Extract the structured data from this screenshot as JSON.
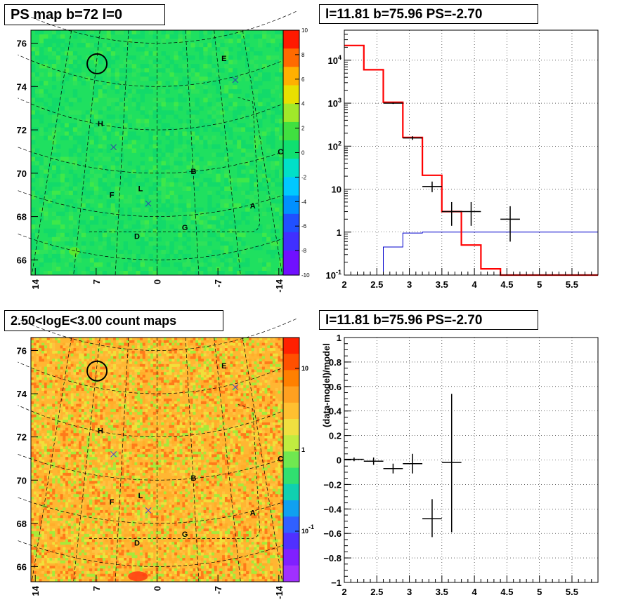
{
  "titles": {
    "top_left": "PS map b=72 l=0",
    "top_right": "l=11.81 b=75.96 PS=-2.70",
    "bottom_left": "2.50<logE<3.00 count maps",
    "bottom_right": "l=11.81 b=75.96 PS=-2.70"
  },
  "chart_data": [
    {
      "id": "ps-map",
      "type": "heatmap",
      "title": "PS map b=72 l=0",
      "x_tick_labels": [
        "14",
        "7",
        "0",
        "-7",
        "-14"
      ],
      "x_ticks": [
        14,
        7,
        0,
        -7,
        -14
      ],
      "xlim": [
        14.5,
        -14.5
      ],
      "y_tick_labels": [
        "66",
        "68",
        "70",
        "72",
        "74",
        "76"
      ],
      "y_ticks": [
        66,
        68,
        70,
        72,
        74,
        76
      ],
      "ylim": [
        65.3,
        76.6
      ],
      "colorbar_tick_labels": [
        "10",
        "8",
        "6",
        "4",
        "2",
        "0",
        "-2",
        "-4",
        "-6",
        "-8",
        "-10"
      ],
      "colorbar_range": [
        -10,
        10
      ],
      "dominant_color": "#1fe060",
      "source_labels": [
        {
          "text": "E",
          "x": -7.7,
          "y": 75.3
        },
        {
          "text": "H",
          "x": 6.5,
          "y": 72.3
        },
        {
          "text": "C",
          "x": -14.2,
          "y": 71.0
        },
        {
          "text": "B",
          "x": -4.2,
          "y": 70.1
        },
        {
          "text": "F",
          "x": 5.2,
          "y": 69.0
        },
        {
          "text": "L",
          "x": 1.9,
          "y": 69.3
        },
        {
          "text": "A",
          "x": -11.0,
          "y": 68.5
        },
        {
          "text": "G",
          "x": -3.2,
          "y": 67.5
        },
        {
          "text": "D",
          "x": 2.3,
          "y": 67.1
        }
      ],
      "markers": [
        {
          "shape": "circle",
          "x": 6.9,
          "y": 75.05
        },
        {
          "shape": "x",
          "x": -9.0,
          "y": 74.3
        },
        {
          "shape": "x",
          "x": 5.0,
          "y": 71.2
        },
        {
          "shape": "x",
          "x": 1.0,
          "y": 68.6
        }
      ]
    },
    {
      "id": "spectrum",
      "type": "line",
      "title": "l=11.81 b=75.96 PS=-2.70",
      "x_tick_labels": [
        "2",
        "2.5",
        "3",
        "3.5",
        "4",
        "4.5",
        "5",
        "5.5"
      ],
      "xlim": [
        2.0,
        5.9
      ],
      "y_scale": "log",
      "ylim": [
        0.1,
        50000
      ],
      "y_tick_labels": [
        {
          "label": "10",
          "sup": "-1",
          "value": 0.1
        },
        {
          "label": "1",
          "sup": "",
          "value": 1
        },
        {
          "label": "10",
          "sup": "",
          "value": 10
        },
        {
          "label": "10",
          "sup": "2",
          "value": 100
        },
        {
          "label": "10",
          "sup": "3",
          "value": 1000
        },
        {
          "label": "10",
          "sup": "4",
          "value": 10000
        }
      ],
      "grid": true,
      "bin_edges": [
        2.0,
        2.3,
        2.6,
        2.9,
        3.2,
        3.5,
        3.8,
        4.1,
        4.4,
        5.9
      ],
      "model_total": {
        "color": "#ff0000",
        "values": [
          22000,
          6000,
          1050,
          160,
          21,
          3.0,
          0.5,
          0.14,
          0.1
        ]
      },
      "model_background": {
        "color": "#0000cc",
        "values": [
          null,
          0.1,
          0.45,
          0.95,
          1.0,
          1.0,
          1.0,
          1.0,
          1.0
        ]
      },
      "data_points": [
        {
          "x": 2.75,
          "xerr": 0.15,
          "y": 1000,
          "ylo": 960,
          "yhi": 1040
        },
        {
          "x": 3.05,
          "xerr": 0.15,
          "y": 155,
          "ylo": 140,
          "yhi": 170
        },
        {
          "x": 3.35,
          "xerr": 0.15,
          "y": 11.5,
          "ylo": 8.5,
          "yhi": 15
        },
        {
          "x": 3.65,
          "xerr": 0.15,
          "y": 3.0,
          "ylo": 1.4,
          "yhi": 5.0
        },
        {
          "x": 3.95,
          "xerr": 0.15,
          "y": 3.0,
          "ylo": 1.4,
          "yhi": 5.0
        },
        {
          "x": 4.55,
          "xerr": 0.15,
          "y": 2.0,
          "ylo": 0.6,
          "yhi": 4.0
        }
      ]
    },
    {
      "id": "count-map",
      "type": "heatmap",
      "title": "2.50<logE<3.00 count maps",
      "x_tick_labels": [
        "14",
        "7",
        "0",
        "-7",
        "-14"
      ],
      "x_ticks": [
        14,
        7,
        0,
        -7,
        -14
      ],
      "xlim": [
        14.5,
        -14.5
      ],
      "y_tick_labels": [
        "66",
        "68",
        "70",
        "72",
        "74",
        "76"
      ],
      "y_ticks": [
        66,
        68,
        70,
        72,
        74,
        76
      ],
      "ylim": [
        65.3,
        76.6
      ],
      "colorbar_scale": "log",
      "colorbar_tick_labels": [
        {
          "label": "10",
          "sup": "",
          "value": 10
        },
        {
          "label": "1",
          "sup": "",
          "value": 1
        },
        {
          "label": "10",
          "sup": "-1",
          "value": 0.1
        }
      ],
      "dominant_colors": [
        "#ffae2a",
        "#ffc240",
        "#f0e03a",
        "#ff7a1a",
        "#a6ea3a"
      ],
      "source_labels": [
        {
          "text": "E",
          "x": -7.7,
          "y": 75.3
        },
        {
          "text": "H",
          "x": 6.5,
          "y": 72.3
        },
        {
          "text": "C",
          "x": -14.2,
          "y": 71.0
        },
        {
          "text": "B",
          "x": -4.2,
          "y": 70.1
        },
        {
          "text": "F",
          "x": 5.2,
          "y": 69.0
        },
        {
          "text": "L",
          "x": 1.9,
          "y": 69.3
        },
        {
          "text": "A",
          "x": -11.0,
          "y": 68.5
        },
        {
          "text": "G",
          "x": -3.2,
          "y": 67.5
        },
        {
          "text": "D",
          "x": 2.3,
          "y": 67.1
        }
      ],
      "markers": [
        {
          "shape": "circle",
          "x": 6.9,
          "y": 75.05
        },
        {
          "shape": "x",
          "x": -9.0,
          "y": 74.3
        },
        {
          "shape": "x",
          "x": 5.0,
          "y": 71.2
        },
        {
          "shape": "x",
          "x": 1.0,
          "y": 68.6
        }
      ]
    },
    {
      "id": "residuals",
      "type": "scatter",
      "title": "l=11.81 b=75.96 PS=-2.70",
      "ylabel": "(data-model)/model",
      "x_tick_labels": [
        "2",
        "2.5",
        "3",
        "3.5",
        "4",
        "4.5",
        "5",
        "5.5"
      ],
      "xlim": [
        2.0,
        5.9
      ],
      "y_tick_labels": [
        "1",
        "0.8",
        "0.6",
        "0.4",
        "0.2",
        "0",
        "-0.2",
        "-0.4",
        "-0.6",
        "-0.8",
        "-1"
      ],
      "ylim": [
        -1,
        1
      ],
      "grid": true,
      "data_points": [
        {
          "x": 2.15,
          "xerr": 0.15,
          "y": 0.005,
          "ylo": -0.01,
          "yhi": 0.02
        },
        {
          "x": 2.45,
          "xerr": 0.15,
          "y": -0.01,
          "ylo": -0.04,
          "yhi": 0.02
        },
        {
          "x": 2.75,
          "xerr": 0.15,
          "y": -0.07,
          "ylo": -0.11,
          "yhi": -0.03
        },
        {
          "x": 3.05,
          "xerr": 0.15,
          "y": -0.03,
          "ylo": -0.11,
          "yhi": 0.05
        },
        {
          "x": 3.35,
          "xerr": 0.15,
          "y": -0.48,
          "ylo": -0.63,
          "yhi": -0.32
        },
        {
          "x": 3.65,
          "xerr": 0.15,
          "y": -0.02,
          "ylo": -0.59,
          "yhi": 0.54
        }
      ]
    }
  ]
}
